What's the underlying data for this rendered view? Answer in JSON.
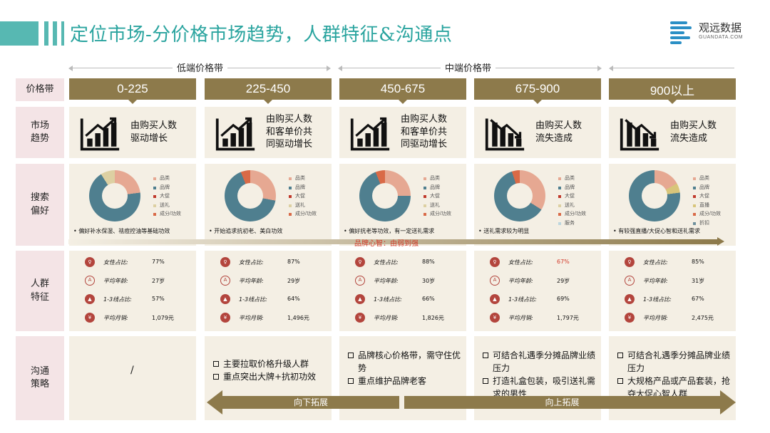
{
  "header": {
    "title": "定位市场-分价格市场趋势，人群特征&沟通点",
    "logo_text": "观远数据",
    "logo_sub": "GUANDATA.COM",
    "accent_color": "#2aa49f"
  },
  "ranges": {
    "low": "低端价格带",
    "mid": "中端价格带"
  },
  "rows": {
    "price": "价格带",
    "trend": "市场\n趋势",
    "pref": "搜索\n偏好",
    "crowd": "人群\n特征",
    "strategy": "沟通\n策略"
  },
  "colors": {
    "category": "#e6a892",
    "brand": "#4f7f8f",
    "promo": "#c0392b",
    "gift": "#ddd0a2",
    "ingredient": "#d96a47",
    "livestream": "#d8c57a",
    "service": "#bcd6df",
    "discount": "#6e8f9c",
    "bar": "#8d7a4b",
    "cell_bg": "#f4efe4",
    "label_bg": "#f4e4e6"
  },
  "columns": [
    {
      "price": "0-225",
      "trend": "由购买人数\n驱动增长",
      "trend_dir": "up",
      "legend": [
        "品类",
        "品牌",
        "大促",
        "送礼",
        "成分/功效"
      ],
      "pie": [
        {
          "k": "category",
          "v": 0.23
        },
        {
          "k": "brand",
          "v": 0.68
        },
        {
          "k": "gift",
          "v": 0.09
        }
      ],
      "pref_note": "偏好补水保湿、祛痘控油等基础功效",
      "stats": {
        "female": "77%",
        "age": "27岁",
        "tier": "57%",
        "sales": "1,079元"
      },
      "strategy": []
    },
    {
      "price": "225-450",
      "trend": "由购买人数\n和客单价共\n同驱动增长",
      "trend_dir": "up",
      "legend": [
        "品类",
        "品牌",
        "大促",
        "送礼",
        "成分/功效"
      ],
      "pie": [
        {
          "k": "category",
          "v": 0.28
        },
        {
          "k": "brand",
          "v": 0.66
        },
        {
          "k": "ingredient",
          "v": 0.06
        }
      ],
      "pref_note": "开始追求抗初老、美白功效",
      "stats": {
        "female": "87%",
        "age": "29岁",
        "tier": "64%",
        "sales": "1,496元"
      },
      "strategy": [
        "主要拉取价格升级人群",
        "重点突出大牌+抗初功效"
      ]
    },
    {
      "price": "450-675",
      "trend": "由购买人数\n和客单价共\n同驱动增长",
      "trend_dir": "up",
      "legend": [
        "品类",
        "品牌",
        "大促",
        "送礼",
        "成分/功效"
      ],
      "pie": [
        {
          "k": "category",
          "v": 0.25
        },
        {
          "k": "brand",
          "v": 0.69
        },
        {
          "k": "ingredient",
          "v": 0.06
        }
      ],
      "pref_note": "偏好抗老等功效，有一定送礼需求",
      "stats": {
        "female": "88%",
        "age": "30岁",
        "tier": "66%",
        "sales": "1,826元"
      },
      "strategy": [
        "品牌核心价格带，需守住优势",
        "重点维护品牌老客"
      ]
    },
    {
      "price": "675-900",
      "trend": "由购买人数\n流失造成",
      "trend_dir": "down",
      "legend": [
        "品类",
        "品牌",
        "大促",
        "送礼",
        "成分/功效",
        "服务"
      ],
      "pie": [
        {
          "k": "category",
          "v": 0.34
        },
        {
          "k": "brand",
          "v": 0.61
        },
        {
          "k": "ingredient",
          "v": 0.05
        }
      ],
      "pref_note": "送礼需求较为明显",
      "stats": {
        "female": "67%",
        "age": "29岁",
        "tier": "69%",
        "sales": "1,797元"
      },
      "strategy": [
        "可结合礼遇季分摊品牌业绩压力",
        "打造礼盒包装，吸引送礼需求的男性"
      ]
    },
    {
      "price": "900以上",
      "trend": "由购买人数\n流失造成",
      "trend_dir": "down",
      "legend": [
        "品类",
        "品牌",
        "大促",
        "直播",
        "成分/功效",
        "折扣"
      ],
      "pie": [
        {
          "k": "category",
          "v": 0.17
        },
        {
          "k": "livestream",
          "v": 0.06
        },
        {
          "k": "brand",
          "v": 0.77
        }
      ],
      "pref_note": "有较强直播/大促心智和送礼需求",
      "stats": {
        "female": "85%",
        "age": "31岁",
        "tier": "67%",
        "sales": "2,475元"
      },
      "strategy": [
        "可结合礼遇季分摊品牌业绩压力",
        "大规格产品或产品套装，抢夺大促心智人群"
      ]
    }
  ],
  "legend_color_keys": {
    "品类": "category",
    "品牌": "brand",
    "大促": "promo",
    "送礼": "gift",
    "成分/功效": "ingredient",
    "服务": "service",
    "直播": "livestream",
    "折扣": "discount"
  },
  "stat_labels": {
    "female": "女性占比:",
    "age": "平均年龄:",
    "tier": "1-3线占比:",
    "sales": "平均月销:"
  },
  "stat_icons": {
    "female": "female-icon",
    "age": "age-icon",
    "tier": "city-tier-icon",
    "sales": "money-bag-icon"
  },
  "band": {
    "label": "品牌心智：由弱到强"
  },
  "empty_strategy": "/",
  "arrows": {
    "down": "向下拓展",
    "up": "向上拓展"
  }
}
